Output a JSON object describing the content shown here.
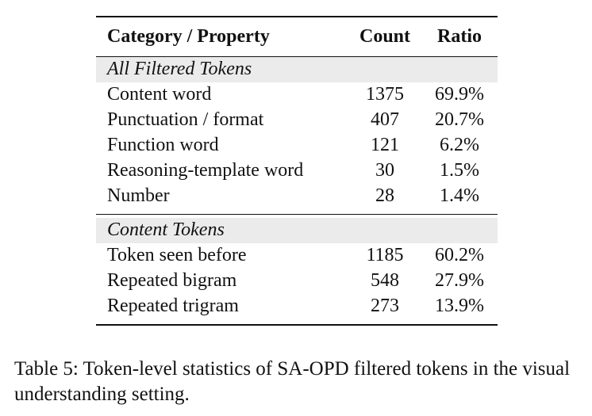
{
  "table": {
    "headers": {
      "category": "Category / Property",
      "count": "Count",
      "ratio": "Ratio"
    },
    "sections": [
      {
        "title": "All Filtered Tokens",
        "rows": [
          {
            "category": "Content word",
            "count": "1375",
            "ratio": "69.9%"
          },
          {
            "category": "Punctuation / format",
            "count": "407",
            "ratio": "20.7%"
          },
          {
            "category": "Function word",
            "count": "121",
            "ratio": "6.2%"
          },
          {
            "category": "Reasoning-template word",
            "count": "30",
            "ratio": "1.5%"
          },
          {
            "category": "Number",
            "count": "28",
            "ratio": "1.4%"
          }
        ]
      },
      {
        "title": "Content Tokens",
        "rows": [
          {
            "category": "Token seen before",
            "count": "1185",
            "ratio": "60.2%"
          },
          {
            "category": "Repeated bigram",
            "count": "548",
            "ratio": "27.9%"
          },
          {
            "category": "Repeated trigram",
            "count": "273",
            "ratio": "13.9%"
          }
        ]
      }
    ]
  },
  "caption": "Table 5: Token-level statistics of SA-OPD filtered tokens in the visual understanding setting."
}
